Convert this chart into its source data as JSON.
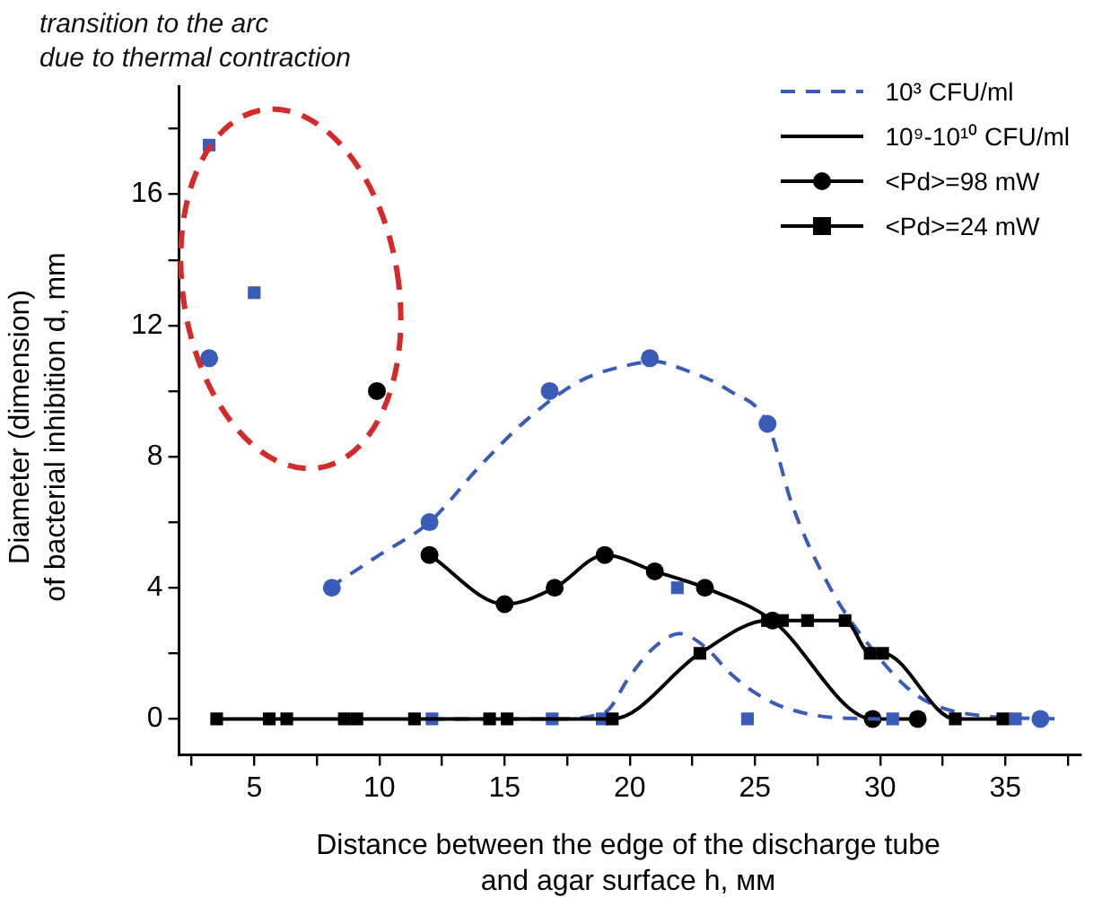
{
  "chart_data": {
    "type": "line",
    "xlabel": "Distance between the edge of the discharge tube\nand agar surface h, мм",
    "ylabel": "Diameter (dimension)\nof bacterial inhibition d, mm",
    "annotations": [
      "transition to the arc\ndue to thermal contraction",
      "10⁹-10¹⁰ CFU/ml"
    ],
    "xlim": [
      2,
      38
    ],
    "xticks": [
      {
        "value": 2.5,
        "label": null
      },
      5,
      {
        "value": 7.5,
        "label": null
      },
      10,
      {
        "value": 12.5,
        "label": null
      },
      15,
      {
        "value": 17.5,
        "label": null
      },
      20,
      {
        "value": 22.5,
        "label": null
      },
      25,
      {
        "value": 27.5,
        "label": null
      },
      30,
      {
        "value": 32.5,
        "label": null
      },
      35,
      {
        "value": 37.5,
        "label": null
      }
    ],
    "ylim": [
      -1.1,
      19.3
    ],
    "yticks": [
      0,
      {
        "value": 2,
        "label": null
      },
      4,
      {
        "value": 6,
        "label": null
      },
      8,
      {
        "value": 10,
        "label": null
      },
      12,
      {
        "value": 14,
        "label": null
      },
      16,
      {
        "value": 18,
        "label": null
      }
    ],
    "grid": false,
    "legend": "top right",
    "series": [
      {
        "name": "10³ CFU/ml",
        "type": "line",
        "color": "#3a5cb8",
        "marker": "none",
        "line_style": "dashed",
        "x": [
          8,
          10,
          12,
          14,
          16,
          18,
          20,
          21,
          22,
          24,
          25.5,
          26.5,
          28,
          29.5,
          31.5,
          34,
          37
        ],
        "values": [
          4,
          5,
          6,
          7.7,
          9.2,
          10.3,
          10.8,
          10.9,
          10.7,
          10,
          9,
          6.5,
          4,
          2.3,
          0.7,
          0.1,
          0
        ]
      },
      {
        "type": "line",
        "color": "#3a5cb8",
        "marker": "none",
        "line_style": "dashed",
        "x": [
          12,
          17,
          19,
          20,
          21,
          22,
          23,
          24,
          25,
          26,
          28,
          30
        ],
        "values": [
          0,
          0,
          0.2,
          1.3,
          2.2,
          2.6,
          2.2,
          1.4,
          0.8,
          0.4,
          0.05,
          0
        ]
      },
      {
        "name": "<Pd>=98 mW",
        "type": "line",
        "color": "#000000",
        "marker": "circle",
        "line_style": "solid",
        "x": [
          12,
          15,
          17,
          19,
          21,
          23,
          25.7,
          29.7,
          31.5
        ],
        "values": [
          5,
          3.5,
          4,
          5,
          4.5,
          4,
          3,
          0,
          0
        ]
      },
      {
        "name": "<Pd>=24 mW",
        "type": "line",
        "color": "#000000",
        "marker": "square",
        "line_style": "solid",
        "x": [
          3.5,
          5.6,
          6.3,
          8.6,
          9.1,
          11.4,
          14.4,
          15.1,
          19.3,
          22.8,
          25.5,
          26.1,
          27.1,
          28.6,
          29.6,
          30.1,
          33,
          34.9
        ],
        "values": [
          0,
          0,
          0,
          0,
          0,
          0,
          0,
          0,
          0,
          2,
          3,
          3,
          3,
          3,
          2,
          2,
          0,
          0
        ]
      },
      {
        "type": "scatter",
        "color": "#3a5cb8",
        "marker": "circle",
        "x": [
          3.2,
          8.1,
          12,
          16.8,
          20.8,
          25.5,
          36.4
        ],
        "values": [
          11,
          4,
          6,
          10,
          11,
          9,
          0
        ]
      },
      {
        "type": "scatter",
        "color": "#3a5cb8",
        "marker": "square",
        "x": [
          3.2,
          5,
          12.1,
          16.9,
          18.9,
          21.9,
          24.7,
          30.5,
          35.4
        ],
        "values": [
          17.5,
          13,
          0,
          0,
          0,
          4,
          0,
          0,
          0
        ]
      },
      {
        "type": "scatter",
        "color": "#000000",
        "marker": "circle",
        "x": [
          9.9
        ],
        "values": [
          10
        ]
      }
    ]
  }
}
